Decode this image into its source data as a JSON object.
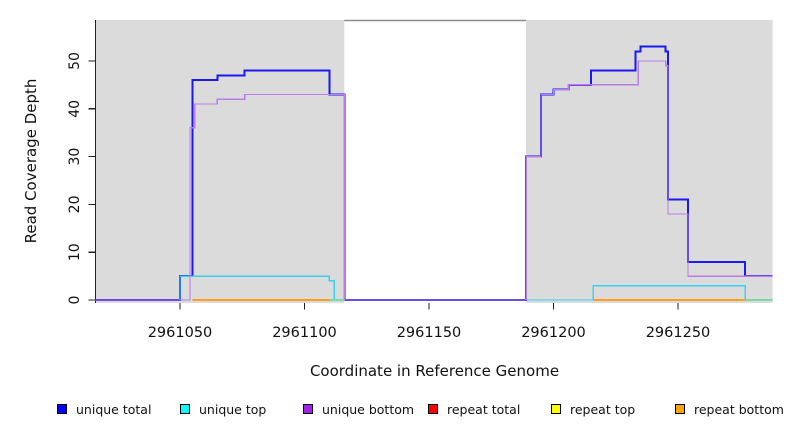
{
  "figure": {
    "background_color": "#ffffff",
    "region_fill_color": "#DBDBDB",
    "gap_border_color": "#8C8C8C",
    "axis_color": "#222222",
    "text_color": "#111111"
  },
  "chart_data": {
    "type": "line",
    "subtype": "step-coverage",
    "title": "",
    "xlabel": "Coordinate in Reference Genome",
    "ylabel": "Read Coverage Depth",
    "xlim": [
      2961016,
      2961288
    ],
    "ylim": [
      0,
      58
    ],
    "grid": false,
    "legend_position": "bottom",
    "x_ticks": [
      {
        "value": 2961050,
        "label": "2961050"
      },
      {
        "value": 2961100,
        "label": "2961100"
      },
      {
        "value": 2961150,
        "label": "2961150"
      },
      {
        "value": 2961200,
        "label": "2961200"
      },
      {
        "value": 2961250,
        "label": "2961250"
      }
    ],
    "y_ticks": [
      {
        "value": 0,
        "label": "0"
      },
      {
        "value": 10,
        "label": "10"
      },
      {
        "value": 20,
        "label": "20"
      },
      {
        "value": 30,
        "label": "30"
      },
      {
        "value": 40,
        "label": "40"
      },
      {
        "value": 50,
        "label": "50"
      }
    ],
    "background_regions": [
      {
        "name": "covered-region-left",
        "x0": 2961016,
        "x1": 2961116
      },
      {
        "name": "covered-region-right",
        "x0": 2961189,
        "x1": 2961288
      }
    ],
    "gap_top_line": {
      "x0": 2961116,
      "x1": 2961189
    },
    "series": [
      {
        "label": "unique total",
        "legend_color": "#0000FF",
        "line_color": "#1A1AF0",
        "line_width": 2,
        "steps": [
          [
            2961016,
            0
          ],
          [
            2961050,
            5
          ],
          [
            2961055,
            46
          ],
          [
            2961065,
            47
          ],
          [
            2961076,
            48
          ],
          [
            2961110,
            43
          ],
          [
            2961116,
            0
          ],
          [
            2961189,
            30
          ],
          [
            2961195,
            43
          ],
          [
            2961200,
            44
          ],
          [
            2961206,
            45
          ],
          [
            2961215,
            48
          ],
          [
            2961233,
            52
          ],
          [
            2961235,
            53
          ],
          [
            2961245,
            52
          ],
          [
            2961246,
            21
          ],
          [
            2961254,
            8
          ],
          [
            2961277,
            5
          ]
        ]
      },
      {
        "label": "unique top",
        "legend_color": "#00FFFF",
        "line_color": "#3BD2EF",
        "line_width": 1.4,
        "steps": [
          [
            2961016,
            0
          ],
          [
            2961050,
            5
          ],
          [
            2961110,
            4
          ],
          [
            2961112,
            0
          ],
          [
            2961216,
            3
          ],
          [
            2961277,
            0
          ]
        ]
      },
      {
        "label": "unique bottom",
        "legend_color": "#A020F0",
        "line_color": "#BB7DE8",
        "line_width": 1.4,
        "steps": [
          [
            2961016,
            0
          ],
          [
            2961054,
            36
          ],
          [
            2961056,
            41
          ],
          [
            2961065,
            42
          ],
          [
            2961076,
            43
          ],
          [
            2961116,
            0
          ],
          [
            2961189,
            30
          ],
          [
            2961195,
            43
          ],
          [
            2961200,
            44
          ],
          [
            2961206,
            45
          ],
          [
            2961234,
            50
          ],
          [
            2961245,
            49
          ],
          [
            2961246,
            18
          ],
          [
            2961254,
            5
          ]
        ]
      },
      {
        "label": "repeat total",
        "legend_color": "#FF0000",
        "line_color": "#EE2222",
        "line_width": 1.4,
        "steps": [
          [
            2961055,
            0
          ],
          [
            2961110,
            null
          ],
          [
            2961216,
            0
          ],
          [
            2961277,
            null
          ]
        ]
      },
      {
        "label": "repeat top",
        "legend_color": "#FFFF00",
        "line_color": "#79D9A5",
        "line_width": 1.6,
        "steps": [
          [
            2961055,
            0
          ],
          [
            2961116,
            null
          ],
          [
            2961216,
            0
          ],
          [
            2961288,
            null
          ]
        ]
      },
      {
        "label": "repeat bottom",
        "legend_color": "#FFA500",
        "line_color": "#FF9D1E",
        "line_width": 1.6,
        "steps": [
          [
            2961055,
            0
          ],
          [
            2961110,
            null
          ],
          [
            2961216,
            0
          ],
          [
            2961277,
            null
          ]
        ]
      }
    ]
  }
}
